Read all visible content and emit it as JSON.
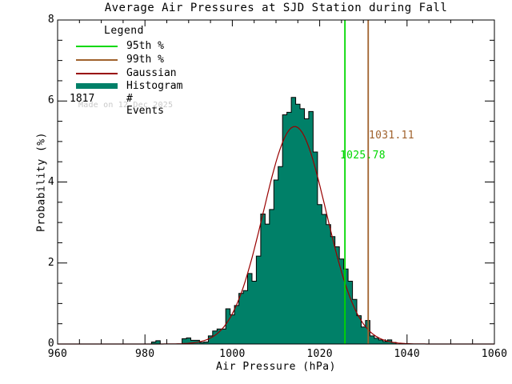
{
  "title": "Average Air Pressures at SJD Station during Fall",
  "axes": {
    "x": {
      "label": "Air Pressure (hPa)",
      "min": 960,
      "max": 1060,
      "major_ticks": [
        960,
        980,
        1000,
        1020,
        1040,
        1060
      ],
      "minor_step": 5
    },
    "y": {
      "label": "Probability (%)",
      "min": 0,
      "max": 8,
      "major_ticks": [
        0,
        2,
        4,
        6,
        8
      ],
      "minor_step": 0.5
    }
  },
  "legend": {
    "title": "Legend",
    "items": [
      {
        "label": "95th %",
        "color": "#00d800",
        "style": "line"
      },
      {
        "label": "99th %",
        "color": "#a0622d",
        "style": "line"
      },
      {
        "label": "Gaussian",
        "color": "#990000",
        "style": "line"
      },
      {
        "label": "Histogram",
        "color": "#008068",
        "style": "thick"
      }
    ],
    "events_count": "1817",
    "events_label": "# Events"
  },
  "watermark": "Made on 12 Dec 2025",
  "percentiles": {
    "p95": {
      "value": 1025.78,
      "label": "1025.78",
      "color": "#00d800"
    },
    "p99": {
      "value": 1031.11,
      "label": "1031.11",
      "color": "#a0622d"
    }
  },
  "colors": {
    "histogram_fill": "#008068",
    "histogram_outline": "#000000",
    "gaussian_line": "#990000",
    "p95_line": "#00d800",
    "p99_line": "#a0622d",
    "axis": "#000000",
    "watermark": "#c9c9c9"
  },
  "chart_data": {
    "type": "bar",
    "subtype": "histogram-with-gaussian-fit",
    "title": "Average Air Pressures at SJD Station during Fall",
    "xlabel": "Air Pressure (hPa)",
    "ylabel": "Probability (%)",
    "xlim": [
      960,
      1060
    ],
    "ylim": [
      0,
      8
    ],
    "grid": false,
    "legend_position": "upper-left-inside",
    "bin_width": 1,
    "bin_centers": [
      982,
      983,
      984,
      985,
      986,
      987,
      988,
      989,
      990,
      991,
      992,
      993,
      994,
      995,
      996,
      997,
      998,
      999,
      1000,
      1001,
      1002,
      1003,
      1004,
      1005,
      1006,
      1007,
      1008,
      1009,
      1010,
      1011,
      1012,
      1013,
      1014,
      1015,
      1016,
      1017,
      1018,
      1019,
      1020,
      1021,
      1022,
      1023,
      1024,
      1025,
      1026,
      1027,
      1028,
      1029,
      1030,
      1031,
      1032,
      1033,
      1034,
      1035,
      1036,
      1037
    ],
    "values": [
      0.05,
      0.08,
      0,
      0,
      0,
      0,
      0,
      0.13,
      0.15,
      0.09,
      0.09,
      0.04,
      0.05,
      0.2,
      0.32,
      0.37,
      0.37,
      0.87,
      0.72,
      0.95,
      1.25,
      1.32,
      1.74,
      1.55,
      2.17,
      3.21,
      2.96,
      3.32,
      4.05,
      4.38,
      5.66,
      5.72,
      6.09,
      5.92,
      5.81,
      5.56,
      5.74,
      4.74,
      3.44,
      3.2,
      2.95,
      2.65,
      2.4,
      2.1,
      1.85,
      1.55,
      1.1,
      0.7,
      0.42,
      0.58,
      0.2,
      0.14,
      0.1,
      0.06,
      0.1,
      0.04
    ],
    "gaussian_fit": {
      "amplitude": 5.37,
      "mean": 1014.3,
      "sigma": 7.2
    },
    "vlines": [
      {
        "name": "95th-percentile",
        "x": 1025.78,
        "label": "1025.78"
      },
      {
        "name": "99th-percentile",
        "x": 1031.11,
        "label": "1031.11"
      }
    ],
    "n_events": 1817
  }
}
